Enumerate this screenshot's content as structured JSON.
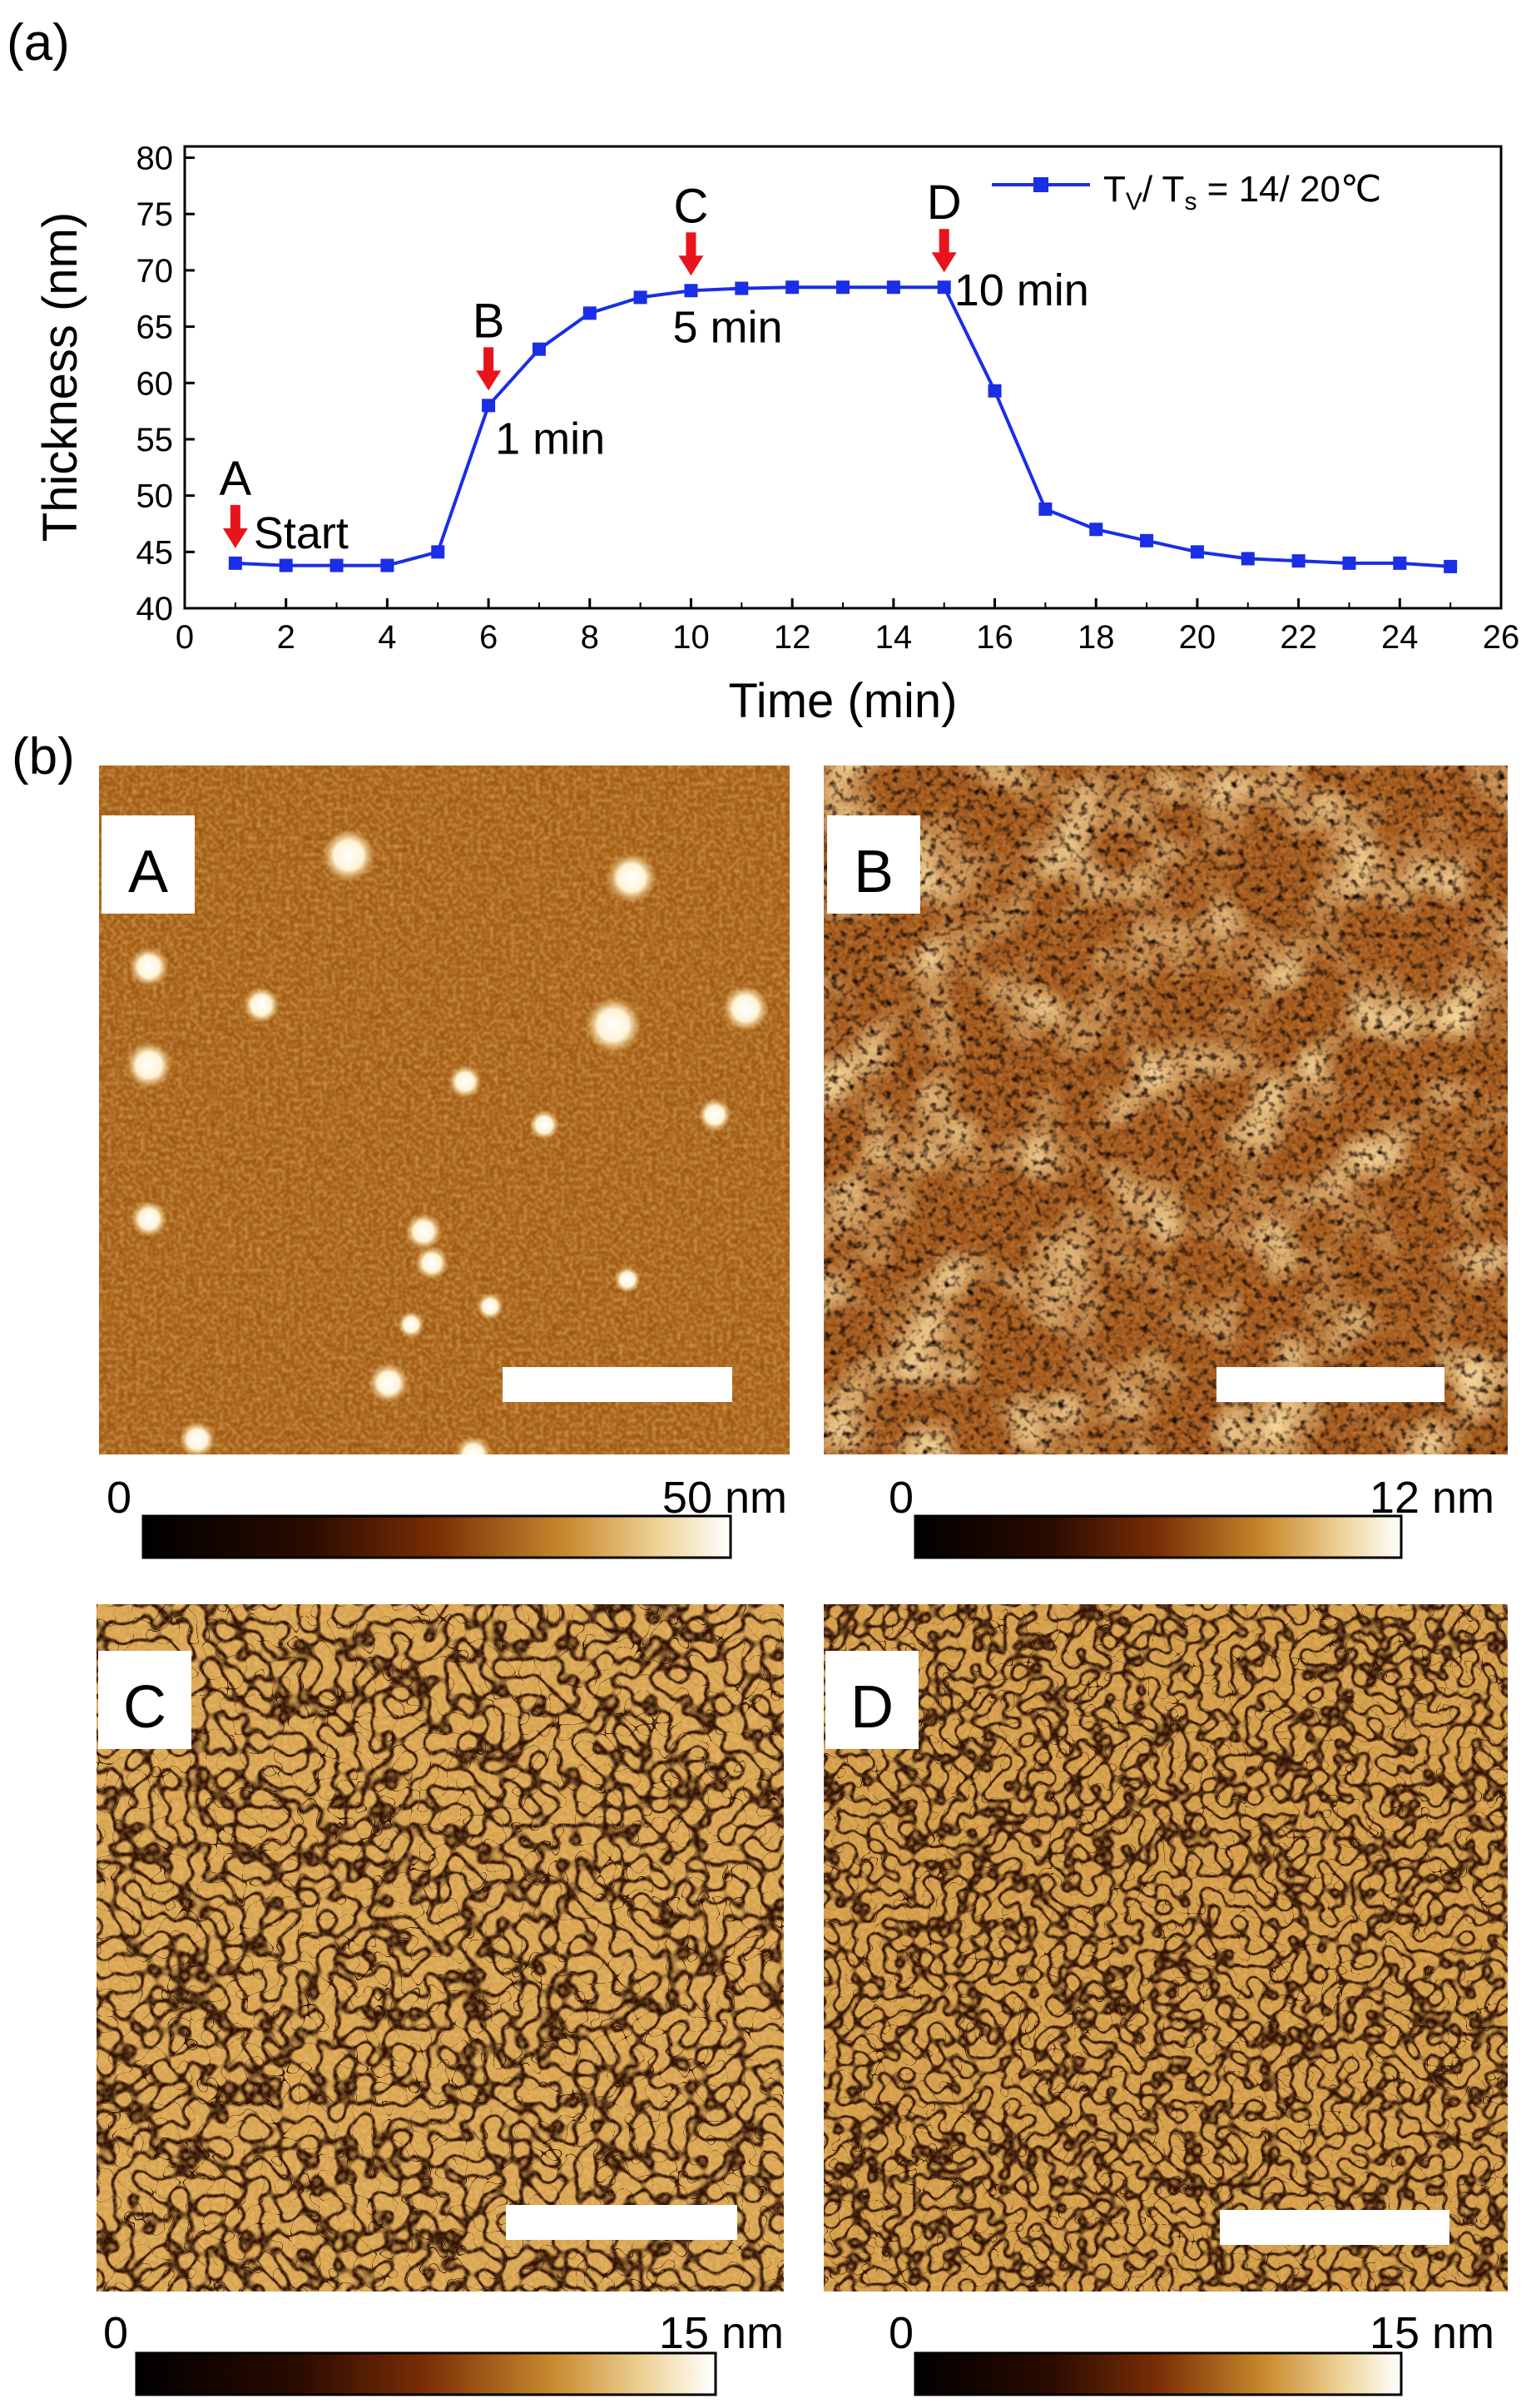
{
  "panel_a_label": "(a)",
  "panel_b_label": "(b)",
  "chart_data": {
    "type": "line",
    "title": "",
    "xlabel": "Time (min)",
    "ylabel": "Thickness (nm)",
    "xlim": [
      0,
      26
    ],
    "ylim": [
      40,
      81
    ],
    "xticks": [
      0,
      2,
      4,
      6,
      8,
      10,
      12,
      14,
      16,
      18,
      20,
      22,
      24,
      26
    ],
    "yticks": [
      40,
      45,
      50,
      55,
      60,
      65,
      70,
      75,
      80
    ],
    "legend_position": "top-right",
    "series": [
      {
        "name": "T_V/ T_s = 14/ 20℃",
        "legend_main": "T",
        "legend_sub1": "V",
        "legend_mid": "/ T",
        "legend_sub2": "s",
        "legend_tail": " = 14/ 20℃",
        "color": "#1a2ee6",
        "x": [
          1,
          2,
          3,
          4,
          5,
          6,
          7,
          8,
          9,
          10,
          11,
          12,
          13,
          14,
          15,
          16,
          17,
          18,
          19,
          20,
          21,
          22,
          23,
          24,
          25
        ],
        "y": [
          44.0,
          43.8,
          43.8,
          43.8,
          45.0,
          58.0,
          63.0,
          66.2,
          67.6,
          68.2,
          68.4,
          68.5,
          68.5,
          68.5,
          68.5,
          59.3,
          48.8,
          47.0,
          46.0,
          45.0,
          44.4,
          44.2,
          44.0,
          44.0,
          43.7
        ]
      }
    ],
    "annotations": [
      {
        "label": "A",
        "note": "Start",
        "x": 1,
        "y": 44.0
      },
      {
        "label": "B",
        "note": "1 min",
        "x": 6,
        "y": 58.0
      },
      {
        "label": "C",
        "note": "5 min",
        "x": 10,
        "y": 68.2
      },
      {
        "label": "D",
        "note": "10 min",
        "x": 15,
        "y": 68.5
      }
    ],
    "arrow_color": "#e8141c"
  },
  "afm_images": [
    {
      "letter": "A",
      "scale_min": "0",
      "scale_max": "50 nm",
      "pattern": "grains"
    },
    {
      "letter": "B",
      "scale_min": "0",
      "scale_max": "12 nm",
      "pattern": "pores"
    },
    {
      "letter": "C",
      "scale_min": "0",
      "scale_max": "15 nm",
      "pattern": "worms"
    },
    {
      "letter": "D",
      "scale_min": "0",
      "scale_max": "15 nm",
      "pattern": "worms-fine"
    }
  ],
  "colors": {
    "afm_dark": "#3a1500",
    "afm_mid": "#b5651d",
    "afm_light": "#f2cc7a",
    "afm_highlight": "#fff6e0"
  }
}
